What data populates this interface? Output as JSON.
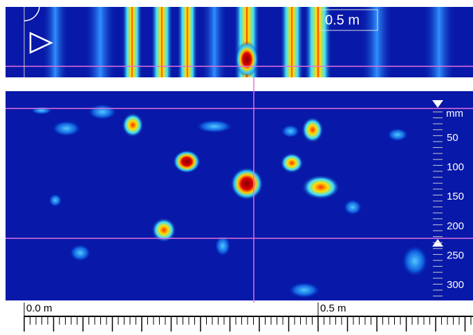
{
  "top_panel": {
    "scale_label": "0.5 m"
  },
  "depth_scale": {
    "unit": "mm",
    "labels": [
      "50",
      "100",
      "150",
      "200",
      "250",
      "300"
    ]
  },
  "ruler": {
    "labels": [
      "0.0 m",
      "0.5 m"
    ]
  }
}
